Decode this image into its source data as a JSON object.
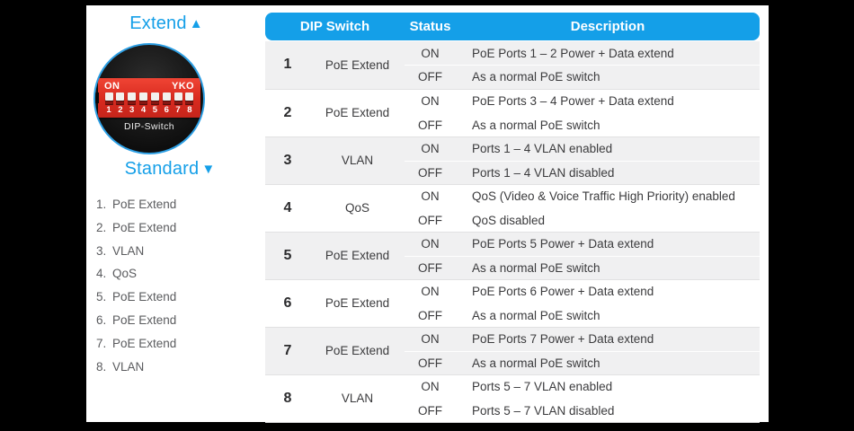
{
  "left_panel": {
    "extend_label": "Extend",
    "extend_arrow": "▲",
    "standard_label": "Standard",
    "standard_arrow": "▼",
    "dip_photo": {
      "on_label": "ON",
      "brand_label": "YKO",
      "caption": "DIP-Switch",
      "switch_numbers": [
        "1",
        "2",
        "3",
        "4",
        "5",
        "6",
        "7",
        "8"
      ]
    },
    "legend": [
      {
        "num": "1.",
        "label": "PoE Extend"
      },
      {
        "num": "2.",
        "label": "PoE Extend"
      },
      {
        "num": "3.",
        "label": "VLAN"
      },
      {
        "num": "4.",
        "label": "QoS"
      },
      {
        "num": "5.",
        "label": "PoE Extend"
      },
      {
        "num": "6.",
        "label": "PoE Extend"
      },
      {
        "num": "7.",
        "label": "PoE Extend"
      },
      {
        "num": "8.",
        "label": "VLAN"
      }
    ]
  },
  "table": {
    "headers": [
      "DIP Switch",
      "Status",
      "Description"
    ],
    "status_on": "ON",
    "status_off": "OFF",
    "rows": [
      {
        "num": "1",
        "name": "PoE Extend",
        "on_desc": "PoE Ports 1 – 2 Power + Data extend",
        "off_desc": "As a normal PoE switch"
      },
      {
        "num": "2",
        "name": "PoE Extend",
        "on_desc": "PoE Ports 3 – 4 Power + Data extend",
        "off_desc": "As a normal PoE switch"
      },
      {
        "num": "3",
        "name": "VLAN",
        "on_desc": "Ports 1 – 4 VLAN enabled",
        "off_desc": "Ports 1 – 4 VLAN disabled"
      },
      {
        "num": "4",
        "name": "QoS",
        "on_desc": "QoS (Video & Voice Traffic High Priority) enabled",
        "off_desc": "QoS disabled"
      },
      {
        "num": "5",
        "name": "PoE Extend",
        "on_desc": "PoE Ports 5 Power + Data extend",
        "off_desc": "As a normal PoE switch"
      },
      {
        "num": "6",
        "name": "PoE Extend",
        "on_desc": "PoE Ports 6 Power + Data extend",
        "off_desc": "As a normal PoE switch"
      },
      {
        "num": "7",
        "name": "PoE Extend",
        "on_desc": "PoE Ports 7 Power + Data extend",
        "off_desc": "As a normal PoE switch"
      },
      {
        "num": "8",
        "name": "VLAN",
        "on_desc": "Ports 5 – 7 VLAN enabled",
        "off_desc": "Ports 5 – 7 VLAN disabled"
      }
    ]
  },
  "colors": {
    "accent_blue": "#149FE8",
    "row_alt_bg": "#F0F0F1",
    "table_text": "#3B3B3D",
    "legend_text": "#5A5B5E",
    "dip_red": "#E5352B",
    "frame_black": "#000000",
    "header_text": "#FFFFFF"
  }
}
